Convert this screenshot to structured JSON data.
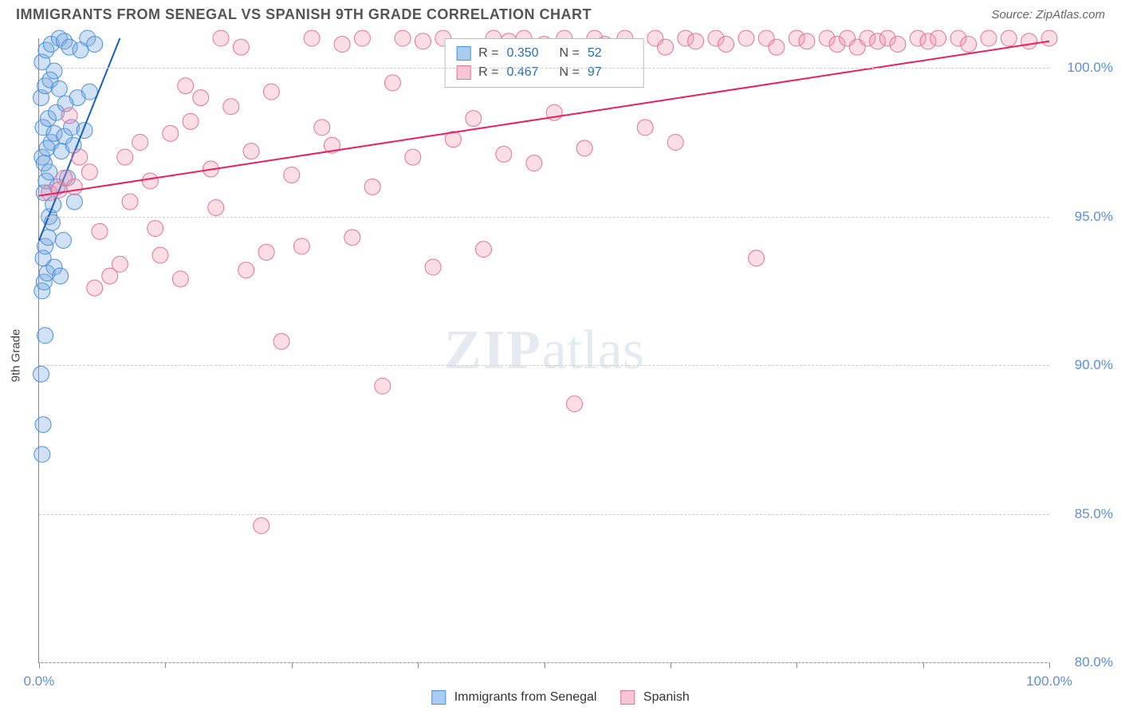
{
  "header": {
    "title": "IMMIGRANTS FROM SENEGAL VS SPANISH 9TH GRADE CORRELATION CHART",
    "source": "Source: ZipAtlas.com"
  },
  "watermark": {
    "bold": "ZIP",
    "light": "atlas"
  },
  "chart": {
    "type": "scatter",
    "ylabel": "9th Grade",
    "xlim": [
      0,
      100
    ],
    "ylim": [
      80,
      101
    ],
    "background_color": "#ffffff",
    "grid_color": "#cccccc",
    "grid_style": "dashed",
    "axis_color": "#888888",
    "tick_label_color": "#5b8fd6",
    "tick_label_fontsize": 17,
    "ylabel_fontsize": 15,
    "marker_radius": 10,
    "marker_opacity": 0.35,
    "line_width": 2,
    "y_ticks": [
      {
        "value": 80,
        "label": "80.0%"
      },
      {
        "value": 85,
        "label": "85.0%"
      },
      {
        "value": 90,
        "label": "90.0%"
      },
      {
        "value": 95,
        "label": "95.0%"
      },
      {
        "value": 100,
        "label": "100.0%"
      }
    ],
    "x_tick_positions": [
      0,
      12.5,
      25,
      37.5,
      50,
      62.5,
      75,
      87.5,
      100
    ],
    "x_tick_labels": [
      {
        "pos": 0,
        "label": "0.0%"
      },
      {
        "pos": 100,
        "label": "100.0%"
      }
    ],
    "series": [
      {
        "name": "Immigrants from Senegal",
        "color_fill": "rgba(120,170,225,0.35)",
        "color_stroke": "#4a90d9",
        "legend_swatch_fill": "#a9cdf0",
        "legend_swatch_border": "#4a90d9",
        "R": "0.350",
        "N": "52",
        "trend": {
          "x1": 0,
          "y1": 94.2,
          "x2": 8,
          "y2": 101,
          "color": "#1560bd"
        },
        "points": [
          [
            0.3,
            87.0
          ],
          [
            0.4,
            88.0
          ],
          [
            0.2,
            89.7
          ],
          [
            0.6,
            91.0
          ],
          [
            0.3,
            92.5
          ],
          [
            0.5,
            92.8
          ],
          [
            0.8,
            93.1
          ],
          [
            0.4,
            93.6
          ],
          [
            0.6,
            94.0
          ],
          [
            0.9,
            94.3
          ],
          [
            1.5,
            93.3
          ],
          [
            2.1,
            93.0
          ],
          [
            2.4,
            94.2
          ],
          [
            1.0,
            95.0
          ],
          [
            1.4,
            95.4
          ],
          [
            0.5,
            95.8
          ],
          [
            0.7,
            96.2
          ],
          [
            1.0,
            96.5
          ],
          [
            0.3,
            97.0
          ],
          [
            0.8,
            97.3
          ],
          [
            1.2,
            97.5
          ],
          [
            1.5,
            97.8
          ],
          [
            0.4,
            98.0
          ],
          [
            0.9,
            98.3
          ],
          [
            1.7,
            98.5
          ],
          [
            2.2,
            97.2
          ],
          [
            2.5,
            97.7
          ],
          [
            0.2,
            99.0
          ],
          [
            0.6,
            99.4
          ],
          [
            1.1,
            99.6
          ],
          [
            1.5,
            99.9
          ],
          [
            0.3,
            100.2
          ],
          [
            0.7,
            100.6
          ],
          [
            1.2,
            100.8
          ],
          [
            2.0,
            101.0
          ],
          [
            2.5,
            100.9
          ],
          [
            3.0,
            100.7
          ],
          [
            3.2,
            98.0
          ],
          [
            3.8,
            99.0
          ],
          [
            4.1,
            100.6
          ],
          [
            4.8,
            101.0
          ],
          [
            5.0,
            99.2
          ],
          [
            5.5,
            100.8
          ],
          [
            0.5,
            96.8
          ],
          [
            1.8,
            96.0
          ],
          [
            2.8,
            96.3
          ],
          [
            3.5,
            95.5
          ],
          [
            2.0,
            99.3
          ],
          [
            2.6,
            98.8
          ],
          [
            3.4,
            97.4
          ],
          [
            4.5,
            97.9
          ],
          [
            1.3,
            94.8
          ]
        ]
      },
      {
        "name": "Spanish",
        "color_fill": "rgba(240,150,175,0.32)",
        "color_stroke": "#e27396",
        "legend_swatch_fill": "#f7c6d4",
        "legend_swatch_border": "#e27396",
        "R": "0.467",
        "N": "97",
        "trend": {
          "x1": 0,
          "y1": 95.7,
          "x2": 100,
          "y2": 100.9,
          "color": "#e91e63"
        },
        "points": [
          [
            1,
            95.8
          ],
          [
            2,
            95.9
          ],
          [
            2.5,
            96.3
          ],
          [
            3.5,
            96.0
          ],
          [
            4,
            97.0
          ],
          [
            5,
            96.5
          ],
          [
            6,
            94.5
          ],
          [
            7,
            93.0
          ],
          [
            8,
            93.4
          ],
          [
            9,
            95.5
          ],
          [
            10,
            97.5
          ],
          [
            11,
            96.2
          ],
          [
            12,
            93.7
          ],
          [
            13,
            97.8
          ],
          [
            14,
            92.9
          ],
          [
            15,
            98.2
          ],
          [
            16,
            99.0
          ],
          [
            17,
            96.6
          ],
          [
            18,
            101.0
          ],
          [
            19,
            98.7
          ],
          [
            20,
            100.7
          ],
          [
            21,
            97.2
          ],
          [
            22,
            84.6
          ],
          [
            22.5,
            93.8
          ],
          [
            23,
            99.2
          ],
          [
            24,
            90.8
          ],
          [
            25,
            96.4
          ],
          [
            26,
            94.0
          ],
          [
            27,
            101.0
          ],
          [
            28,
            98.0
          ],
          [
            29,
            97.4
          ],
          [
            30,
            100.8
          ],
          [
            31,
            94.3
          ],
          [
            32,
            101.0
          ],
          [
            33,
            96.0
          ],
          [
            34,
            89.3
          ],
          [
            35,
            99.5
          ],
          [
            36,
            101.0
          ],
          [
            37,
            97.0
          ],
          [
            38,
            100.9
          ],
          [
            39,
            93.3
          ],
          [
            40,
            101.0
          ],
          [
            41,
            97.6
          ],
          [
            42,
            100.7
          ],
          [
            43,
            98.3
          ],
          [
            44,
            93.9
          ],
          [
            45,
            101.0
          ],
          [
            46,
            97.1
          ],
          [
            48,
            101.0
          ],
          [
            49,
            96.8
          ],
          [
            50,
            100.8
          ],
          [
            51,
            98.5
          ],
          [
            52,
            101.0
          ],
          [
            53,
            88.7
          ],
          [
            54,
            97.3
          ],
          [
            55,
            101.0
          ],
          [
            56,
            100.8
          ],
          [
            58,
            101.0
          ],
          [
            60,
            98.0
          ],
          [
            61,
            101.0
          ],
          [
            62,
            100.7
          ],
          [
            63,
            97.5
          ],
          [
            64,
            101.0
          ],
          [
            65,
            100.9
          ],
          [
            67,
            101.0
          ],
          [
            68,
            100.8
          ],
          [
            70,
            101.0
          ],
          [
            71,
            93.6
          ],
          [
            72,
            101.0
          ],
          [
            73,
            100.7
          ],
          [
            75,
            101.0
          ],
          [
            76,
            100.9
          ],
          [
            78,
            101.0
          ],
          [
            79,
            100.8
          ],
          [
            80,
            101.0
          ],
          [
            81,
            100.7
          ],
          [
            82,
            101.0
          ],
          [
            83,
            100.9
          ],
          [
            84,
            101.0
          ],
          [
            85,
            100.8
          ],
          [
            87,
            101.0
          ],
          [
            88,
            100.9
          ],
          [
            89,
            101.0
          ],
          [
            91,
            101.0
          ],
          [
            92,
            100.8
          ],
          [
            94,
            101.0
          ],
          [
            96,
            101.0
          ],
          [
            98,
            100.9
          ],
          [
            100,
            101.0
          ],
          [
            3,
            98.4
          ],
          [
            5.5,
            92.6
          ],
          [
            8.5,
            97.0
          ],
          [
            11.5,
            94.6
          ],
          [
            14.5,
            99.4
          ],
          [
            17.5,
            95.3
          ],
          [
            20.5,
            93.2
          ],
          [
            46.5,
            100.9
          ]
        ]
      }
    ]
  },
  "legend_bottom": [
    {
      "label": "Immigrants from Senegal",
      "fill": "#a9cdf0",
      "border": "#4a90d9"
    },
    {
      "label": "Spanish",
      "fill": "#f7c6d4",
      "border": "#e27396"
    }
  ]
}
